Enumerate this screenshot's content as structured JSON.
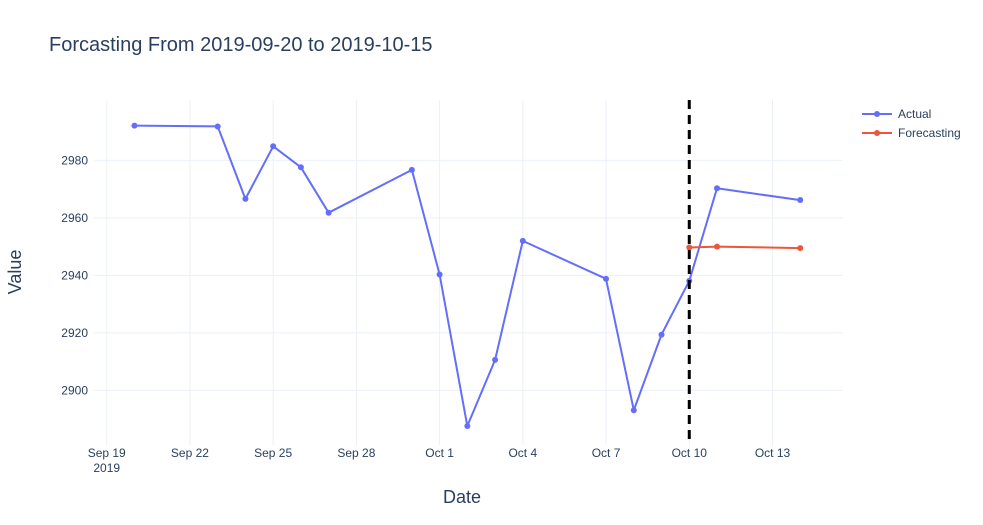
{
  "chart_data": {
    "type": "line",
    "title": "Forcasting From 2019-09-20 to 2019-10-15",
    "xlabel": "Date",
    "ylabel": "Value",
    "x_range": [
      "2019-09-18T13:00",
      "2019-10-15T13:00"
    ],
    "ylim": [
      2881,
      3001
    ],
    "y_ticks": [
      2900,
      2920,
      2940,
      2960,
      2980
    ],
    "x_ticks": [
      {
        "date": "2019-09-19",
        "label": "Sep 19",
        "sublabel": "2019"
      },
      {
        "date": "2019-09-22",
        "label": "Sep 22"
      },
      {
        "date": "2019-09-25",
        "label": "Sep 25"
      },
      {
        "date": "2019-09-28",
        "label": "Sep 28"
      },
      {
        "date": "2019-10-01",
        "label": "Oct 1"
      },
      {
        "date": "2019-10-04",
        "label": "Oct 4"
      },
      {
        "date": "2019-10-07",
        "label": "Oct 7"
      },
      {
        "date": "2019-10-10",
        "label": "Oct 10"
      },
      {
        "date": "2019-10-13",
        "label": "Oct 13"
      }
    ],
    "series": [
      {
        "name": "Actual",
        "color": "#636efa",
        "x": [
          "2019-09-20",
          "2019-09-23",
          "2019-09-24",
          "2019-09-25",
          "2019-09-26",
          "2019-09-27",
          "2019-09-30",
          "2019-10-01",
          "2019-10-02",
          "2019-10-03",
          "2019-10-04",
          "2019-10-07",
          "2019-10-08",
          "2019-10-09",
          "2019-10-10",
          "2019-10-11",
          "2019-10-14"
        ],
        "y": [
          2992.1,
          2991.8,
          2966.6,
          2984.9,
          2977.6,
          2961.8,
          2976.7,
          2940.3,
          2887.6,
          2910.6,
          2952.0,
          2938.8,
          2893.1,
          2919.4,
          2938.1,
          2970.3,
          2966.2
        ]
      },
      {
        "name": "Forecasting",
        "color": "#ef553b",
        "x": [
          "2019-10-10",
          "2019-10-11",
          "2019-10-14"
        ],
        "y": [
          2949.7,
          2950.0,
          2949.5
        ]
      }
    ],
    "vline": {
      "x": "2019-10-10",
      "color": "#000000",
      "style": "dash"
    },
    "grid": true,
    "legend_position": "top-right"
  }
}
